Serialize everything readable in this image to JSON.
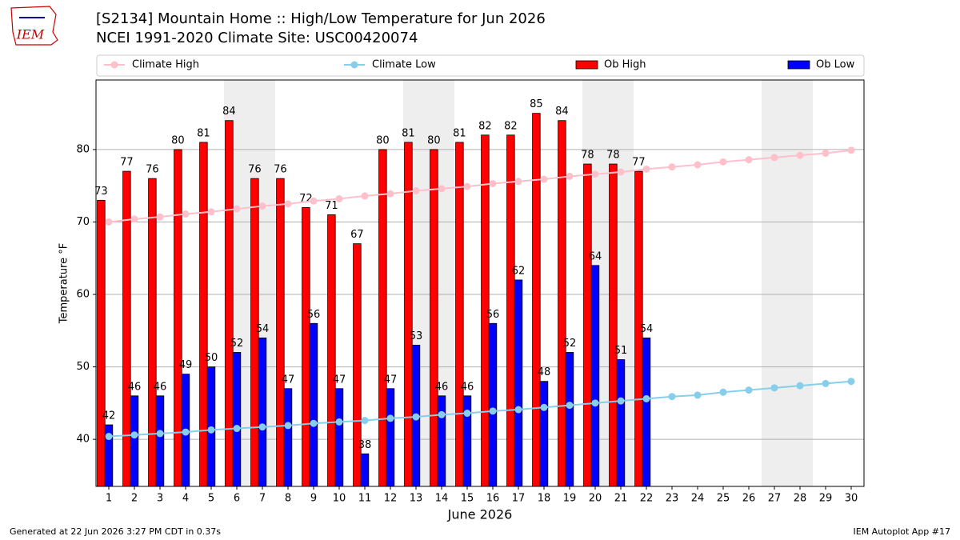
{
  "chart_data": {
    "type": "bar",
    "title_lines": [
      "[S2134] Mountain Home :: High/Low Temperature for Jun 2026",
      "NCEI 1991-2020 Climate Site: USC00420074"
    ],
    "logo_text": "IEM",
    "xlabel": "June 2026",
    "ylabel": "Temperature °F",
    "footer_left": "Generated at 22 Jun 2026 3:27 PM CDT in 0.37s",
    "footer_right": "IEM Autoplot App #17",
    "categories": [
      "1",
      "2",
      "3",
      "4",
      "5",
      "6",
      "7",
      "8",
      "9",
      "10",
      "11",
      "12",
      "13",
      "14",
      "15",
      "16",
      "17",
      "18",
      "19",
      "20",
      "21",
      "22",
      "23",
      "24",
      "25",
      "26",
      "27",
      "28",
      "29",
      "30"
    ],
    "shaded_categories": [
      6,
      7,
      13,
      14,
      20,
      21,
      27,
      28
    ],
    "shade_color": "#eeeeee",
    "ylim": [
      33.5,
      89.6
    ],
    "yticks": [
      40,
      50,
      60,
      70,
      80
    ],
    "grid": true,
    "legend": "top",
    "series": [
      {
        "name": "Climate High",
        "kind": "line",
        "color": "#ffc0cb",
        "values": [
          70.0,
          70.4,
          70.7,
          71.1,
          71.4,
          71.8,
          72.2,
          72.5,
          72.9,
          73.2,
          73.6,
          73.9,
          74.3,
          74.6,
          74.9,
          75.3,
          75.6,
          75.9,
          76.3,
          76.6,
          76.9,
          77.3,
          77.6,
          77.9,
          78.3,
          78.6,
          78.9,
          79.2,
          79.5,
          79.9
        ]
      },
      {
        "name": "Climate Low",
        "kind": "line",
        "color": "#87ceeb",
        "values": [
          40.4,
          40.6,
          40.8,
          41.0,
          41.3,
          41.5,
          41.7,
          41.9,
          42.2,
          42.4,
          42.6,
          42.9,
          43.1,
          43.4,
          43.6,
          43.9,
          44.1,
          44.4,
          44.7,
          45.0,
          45.3,
          45.6,
          45.9,
          46.1,
          46.5,
          46.8,
          47.1,
          47.4,
          47.7,
          48.0
        ]
      },
      {
        "name": "Ob High",
        "kind": "bar",
        "color": "#ff0000",
        "values": [
          73,
          77,
          76,
          80,
          81,
          84,
          76,
          76,
          72,
          71,
          67,
          80,
          81,
          80,
          81,
          82,
          82,
          85,
          84,
          78,
          78,
          77,
          null,
          null,
          null,
          null,
          null,
          null,
          null,
          null
        ]
      },
      {
        "name": "Ob Low",
        "kind": "bar",
        "color": "#0000ff",
        "values": [
          42,
          46,
          46,
          49,
          50,
          52,
          54,
          47,
          56,
          47,
          38,
          47,
          53,
          46,
          46,
          56,
          62,
          48,
          52,
          64,
          51,
          54,
          null,
          null,
          null,
          null,
          null,
          null,
          null,
          null
        ]
      }
    ]
  }
}
